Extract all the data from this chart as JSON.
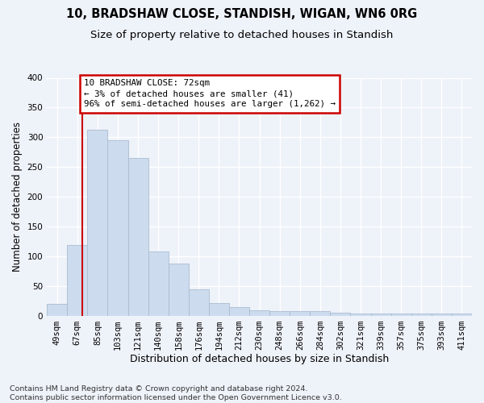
{
  "title1": "10, BRADSHAW CLOSE, STANDISH, WIGAN, WN6 0RG",
  "title2": "Size of property relative to detached houses in Standish",
  "xlabel": "Distribution of detached houses by size in Standish",
  "ylabel": "Number of detached properties",
  "footnote": "Contains HM Land Registry data © Crown copyright and database right 2024.\nContains public sector information licensed under the Open Government Licence v3.0.",
  "bin_labels": [
    "49sqm",
    "67sqm",
    "85sqm",
    "103sqm",
    "121sqm",
    "140sqm",
    "158sqm",
    "176sqm",
    "194sqm",
    "212sqm",
    "230sqm",
    "248sqm",
    "266sqm",
    "284sqm",
    "302sqm",
    "321sqm",
    "339sqm",
    "357sqm",
    "375sqm",
    "393sqm",
    "411sqm"
  ],
  "bar_heights": [
    20,
    119,
    313,
    295,
    265,
    108,
    88,
    44,
    21,
    14,
    9,
    8,
    7,
    7,
    5,
    4,
    4,
    4,
    4,
    3,
    4
  ],
  "bar_color": "#ccdcee",
  "bar_edge_color": "#aabbd0",
  "annotation_text": "10 BRADSHAW CLOSE: 72sqm\n← 3% of detached houses are smaller (41)\n96% of semi-detached houses are larger (1,262) →",
  "annotation_box_color": "#ffffff",
  "annotation_box_edge": "#cc0000",
  "red_line_color": "#cc0000",
  "ylim": [
    0,
    400
  ],
  "yticks": [
    0,
    50,
    100,
    150,
    200,
    250,
    300,
    350,
    400
  ],
  "background_color": "#eef2f9",
  "grid_color": "#ffffff",
  "title1_fontsize": 10.5,
  "title2_fontsize": 9.5,
  "xlabel_fontsize": 9,
  "ylabel_fontsize": 8.5,
  "tick_fontsize": 7.5,
  "footnote_fontsize": 6.8,
  "red_line_bar_index": 1.25
}
